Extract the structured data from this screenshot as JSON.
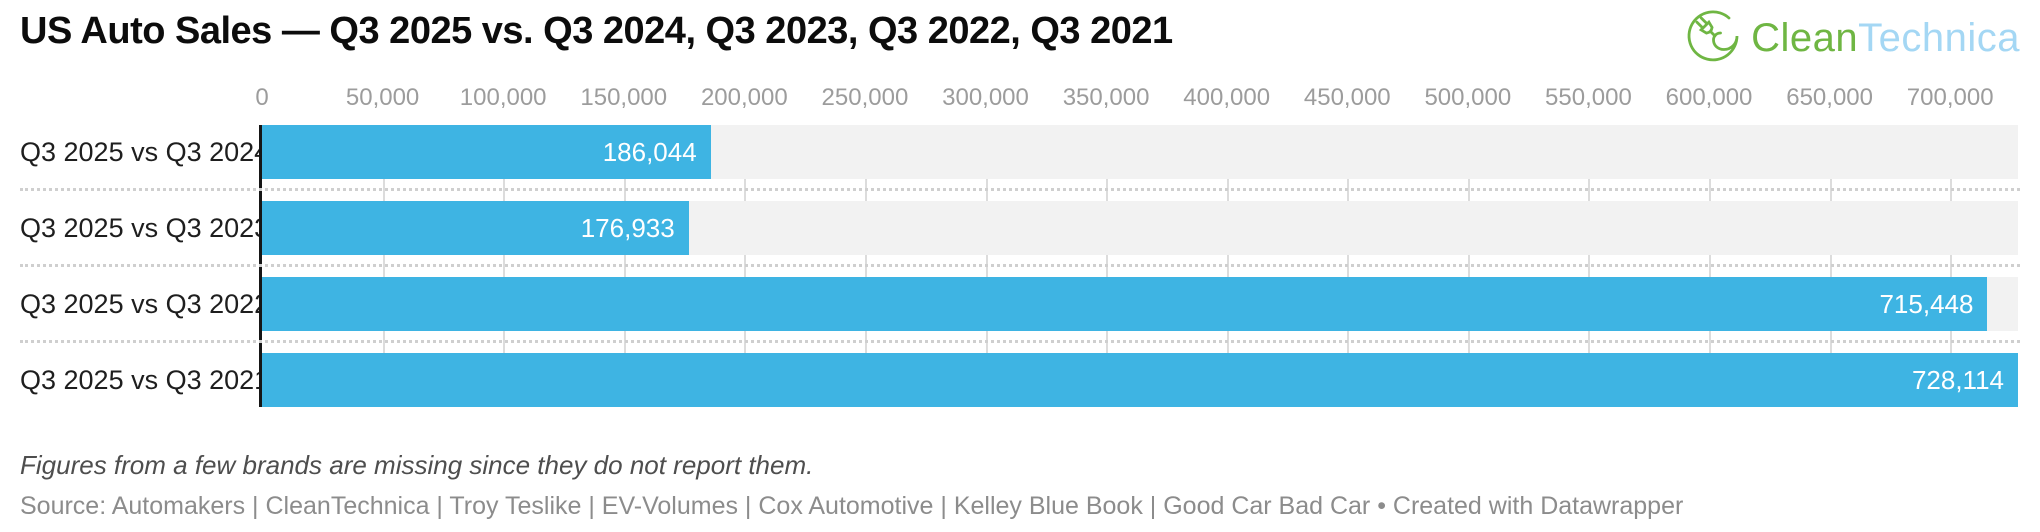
{
  "title": "US Auto Sales — Q3 2025 vs. Q3 2024, Q3 2023, Q3 2022, Q3 2021",
  "logo": {
    "clean": "Clean",
    "technica": "Technica",
    "green": "#6fb643",
    "light_blue": "#a4d7f4"
  },
  "chart_data": {
    "type": "bar",
    "orientation": "horizontal",
    "title": "US Auto Sales — Q3 2025 vs. Q3 2024, Q3 2023, Q3 2022, Q3 2021",
    "categories": [
      "Q3 2025 vs Q3 2024",
      "Q3 2025 vs Q3 2023",
      "Q3 2025 vs Q3 2022",
      "Q3 2025 vs Q3 2021"
    ],
    "values": [
      186044,
      176933,
      715448,
      728114
    ],
    "value_labels": [
      "186,044",
      "176,933",
      "715,448",
      "728,114"
    ],
    "xlim": [
      0,
      728114
    ],
    "x_ticks": [
      0,
      50000,
      100000,
      150000,
      200000,
      250000,
      300000,
      350000,
      400000,
      450000,
      500000,
      550000,
      600000,
      650000,
      700000
    ],
    "x_tick_labels": [
      "0",
      "50,000",
      "100,000",
      "150,000",
      "200,000",
      "250,000",
      "300,000",
      "350,000",
      "400,000",
      "450,000",
      "500,000",
      "550,000",
      "600,000",
      "650,000",
      "700,000"
    ],
    "bar_color": "#3eb4e3",
    "track_color": "#f2f2f2",
    "grid": true,
    "legend": "none",
    "value_labels_position": "inside-end",
    "value_label_color": "#ffffff"
  },
  "footer": {
    "note": "Figures from a few brands are missing since they do not report them.",
    "source": "Source: Automakers | CleanTechnica | Troy Teslike | EV-Volumes | Cox Automotive | Kelley Blue Book | Good Car Bad Car • Created with Datawrapper"
  }
}
